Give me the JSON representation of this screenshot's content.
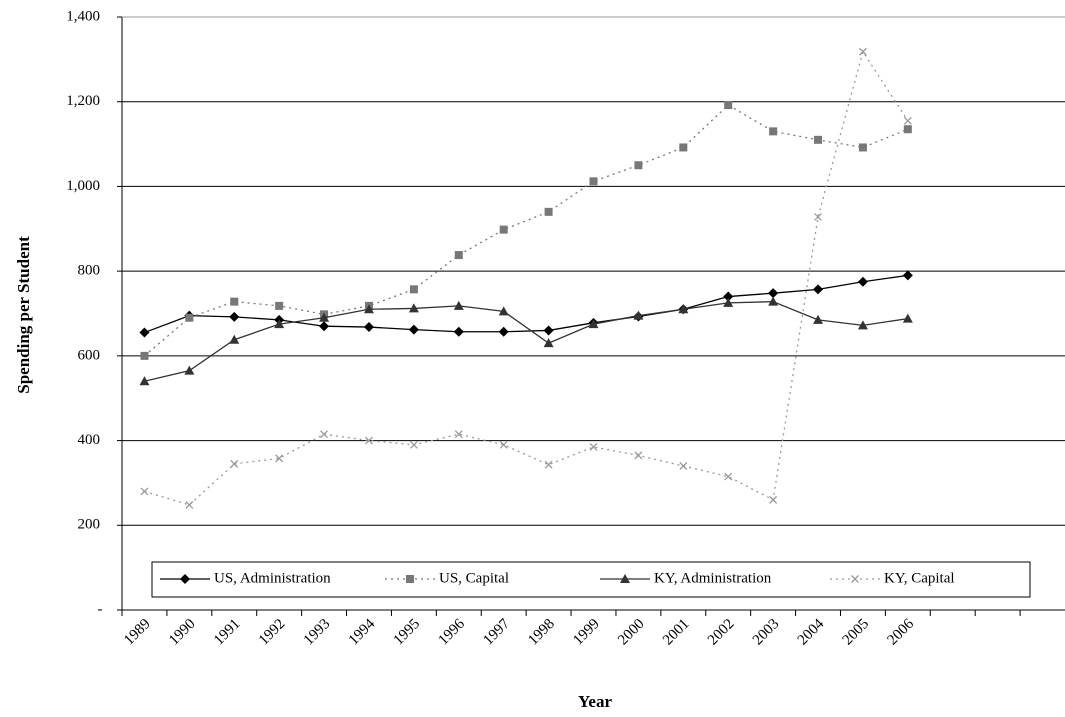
{
  "chart_data": {
    "type": "line",
    "x_label": "Year",
    "y_label": "Spending per Student",
    "categories": [
      "1989",
      "1990",
      "1991",
      "1992",
      "1993",
      "1994",
      "1995",
      "1996",
      "1997",
      "1998",
      "1999",
      "2000",
      "2001",
      "2002",
      "2003",
      "2004",
      "2005",
      "2006",
      null,
      null,
      null
    ],
    "ylim": [
      0,
      1400
    ],
    "yticks": [
      {
        "value": 0,
        "label": "-"
      },
      200,
      400,
      600,
      800,
      {
        "value": 1000,
        "label": "1,000"
      },
      {
        "value": 1200,
        "label": "1,200"
      },
      {
        "value": 1400,
        "label": "1,400"
      }
    ],
    "grid": true,
    "legend": "bottom",
    "series": [
      {
        "name": "US, Administration",
        "color": "#000000",
        "marker": "diamond",
        "dashed": false,
        "values": [
          655,
          695,
          692,
          685,
          670,
          668,
          662,
          657,
          657,
          660,
          678,
          693,
          710,
          740,
          748,
          757,
          775,
          790,
          null,
          null,
          null
        ]
      },
      {
        "name": "US, Capital",
        "color": "#777777",
        "marker": "square",
        "dashed": true,
        "values": [
          600,
          690,
          728,
          718,
          698,
          718,
          757,
          838,
          898,
          940,
          1012,
          1050,
          1092,
          1192,
          1130,
          1110,
          1092,
          1135,
          null,
          null,
          null
        ]
      },
      {
        "name": "KY, Administration",
        "color": "#333333",
        "marker": "triangle",
        "dashed": false,
        "values": [
          540,
          565,
          638,
          675,
          690,
          710,
          712,
          718,
          705,
          630,
          675,
          695,
          710,
          725,
          728,
          685,
          672,
          688,
          null,
          null,
          null
        ]
      },
      {
        "name": "KY, Capital",
        "color": "#999999",
        "marker": "x",
        "dashed": true,
        "values": [
          280,
          248,
          345,
          358,
          415,
          400,
          390,
          415,
          390,
          343,
          385,
          365,
          340,
          315,
          260,
          928,
          1318,
          1155,
          null,
          null,
          null
        ]
      }
    ]
  }
}
